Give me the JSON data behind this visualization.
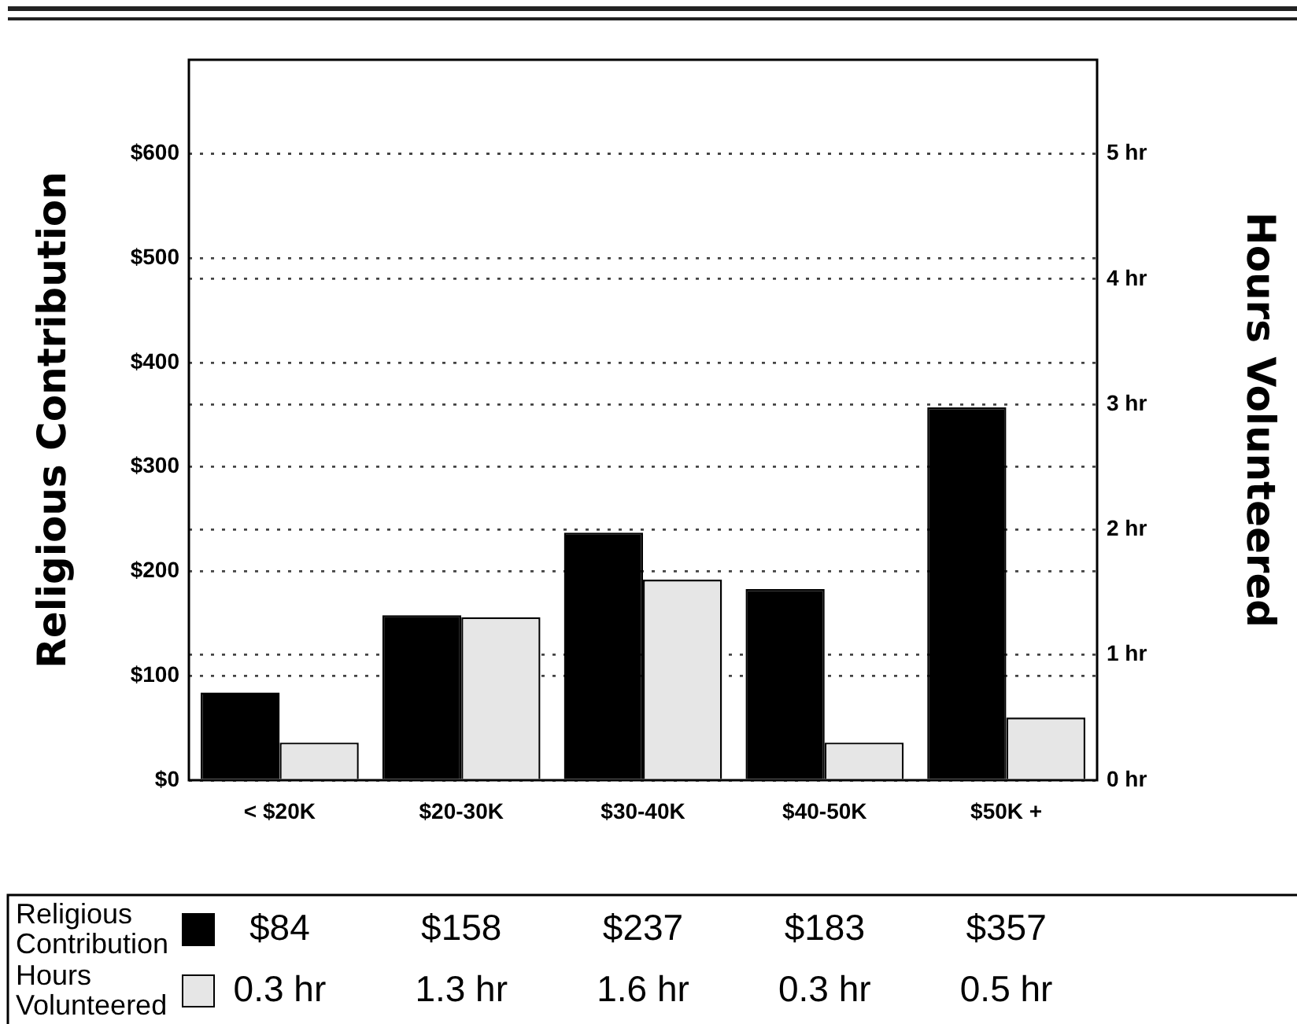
{
  "chart_data": {
    "type": "bar",
    "categories": [
      "< $20K",
      "$20-30K",
      "$30-40K",
      "$40-50K",
      "$50K +"
    ],
    "series": [
      {
        "name": "Religious Contribution",
        "color": "#000000",
        "values": [
          84,
          158,
          237,
          183,
          357
        ],
        "value_labels": [
          "$84",
          "$158",
          "$237",
          "$183",
          "$357"
        ]
      },
      {
        "name": "Hours Volunteered",
        "color": "#e6e6e6",
        "axis": "y2",
        "values": [
          0.3,
          1.3,
          1.6,
          0.3,
          0.5
        ],
        "value_labels": [
          "0.3 hr",
          "1.3 hr",
          "1.6 hr",
          "0.3 hr",
          "0.5 hr"
        ]
      }
    ],
    "ylabel": "Religious Contribution",
    "y2label": "Hours Volunteered",
    "ylim": [
      0,
      690
    ],
    "yticks": [
      {
        "value": 0,
        "label": "$0"
      },
      {
        "value": 100,
        "label": "$100"
      },
      {
        "value": 200,
        "label": "$200"
      },
      {
        "value": 300,
        "label": "$300"
      },
      {
        "value": 400,
        "label": "$400"
      },
      {
        "value": 500,
        "label": "$500"
      },
      {
        "value": 600,
        "label": "$600"
      }
    ],
    "y2lim": [
      0,
      5.75
    ],
    "y2ticks": [
      {
        "value": 0,
        "label": "0 hr"
      },
      {
        "value": 1,
        "label": "1 hr"
      },
      {
        "value": 2,
        "label": "2 hr"
      },
      {
        "value": 3,
        "label": "3 hr"
      },
      {
        "value": 4,
        "label": "4 hr"
      },
      {
        "value": 5,
        "label": "5 hr"
      }
    ],
    "grid": true,
    "legend": "bottom"
  }
}
